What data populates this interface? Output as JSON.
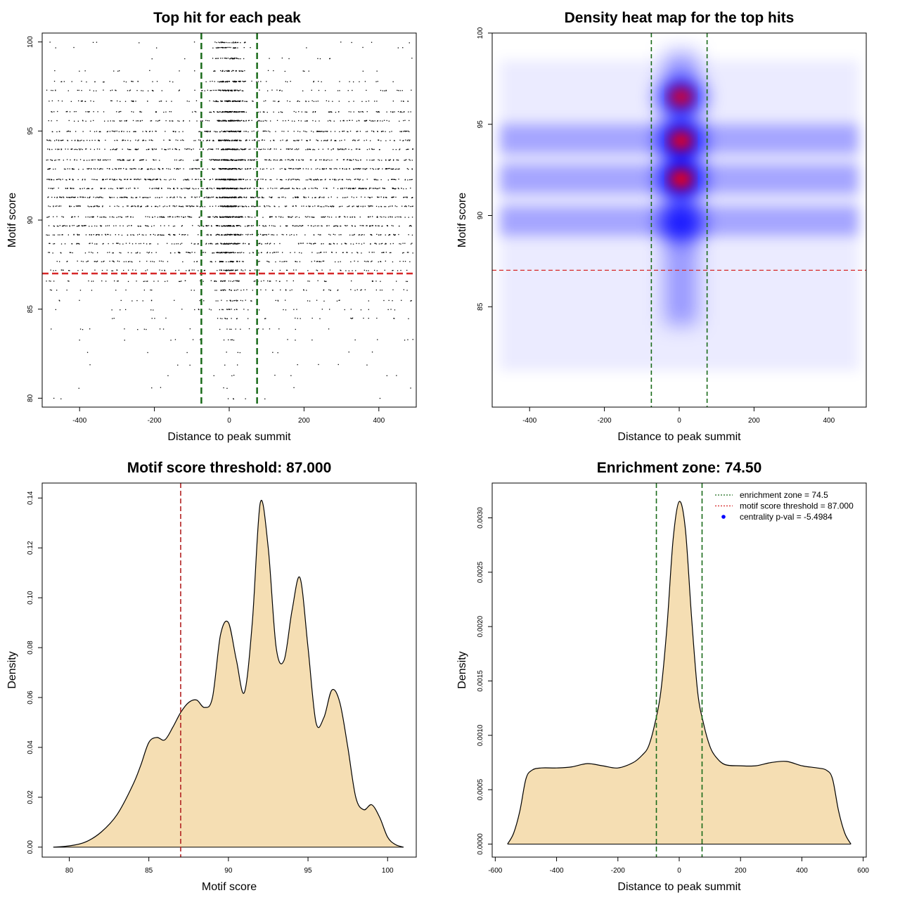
{
  "chart_data": [
    {
      "type": "scatter",
      "title": "Top hit for each peak",
      "xlabel": "Distance to peak summit",
      "ylabel": "Motif score",
      "xlim": [
        -500,
        500
      ],
      "ylim": [
        79.5,
        100.5
      ],
      "xticks": [
        "-400",
        "-200",
        "0",
        "200",
        "400"
      ],
      "yticks": [
        "80",
        "85",
        "90",
        "95",
        "100"
      ],
      "score_levels": [
        80.0,
        80.6,
        81.3,
        81.9,
        82.6,
        83.3,
        83.9,
        84.5,
        85.0,
        85.5,
        86.1,
        86.6,
        87.2,
        87.7,
        88.2,
        88.7,
        89.2,
        89.7,
        90.2,
        90.8,
        91.3,
        91.8,
        92.3,
        92.9,
        93.4,
        94.0,
        94.5,
        95.0,
        95.6,
        96.1,
        96.7,
        97.3,
        97.8,
        98.4,
        99.1,
        99.7,
        100.0
      ],
      "central_zone": [
        -74.5,
        74.5
      ],
      "threshold": 87.0,
      "line_colors": {
        "zone": "#1a6b1a",
        "threshold": "#d62728"
      }
    },
    {
      "type": "heatmap",
      "title": "Density heat map for the top hits",
      "xlabel": "Distance to peak summit",
      "ylabel": "Motif score",
      "xlim": [
        -500,
        500
      ],
      "ylim": [
        79.5,
        100
      ],
      "xticks": [
        "-400",
        "-200",
        "0",
        "200",
        "400"
      ],
      "yticks": [
        "85",
        "90",
        "95",
        "100"
      ],
      "hotspots": [
        {
          "x": 5,
          "y": 96.5,
          "intensity": 0.85
        },
        {
          "x": 5,
          "y": 94.1,
          "intensity": 0.95
        },
        {
          "x": 5,
          "y": 92.0,
          "intensity": 1.0
        },
        {
          "x": 5,
          "y": 89.6,
          "intensity": 0.55
        }
      ],
      "bands": [
        94.2,
        92.0,
        89.7
      ],
      "central_zone": [
        -74.5,
        74.5
      ],
      "threshold": 87.0,
      "colors": {
        "low": "#ffffff",
        "mid": "#0000ff",
        "high": "#ff0000"
      }
    },
    {
      "type": "area",
      "title": "Motif score threshold: 87.000",
      "xlabel": "Motif score",
      "ylabel": "Density",
      "xlim": [
        78.3,
        101.8
      ],
      "ylim": [
        -0.004,
        0.146
      ],
      "xticks": [
        "80",
        "85",
        "90",
        "95",
        "100"
      ],
      "yticks": [
        "0.00",
        "0.02",
        "0.04",
        "0.06",
        "0.08",
        "0.10",
        "0.12",
        "0.14"
      ],
      "x": [
        79.0,
        80.0,
        81.0,
        82.0,
        83.0,
        84.0,
        84.5,
        85.0,
        85.5,
        86.0,
        86.5,
        87.0,
        87.5,
        88.0,
        88.5,
        89.0,
        89.5,
        90.0,
        90.5,
        91.0,
        91.5,
        92.0,
        92.5,
        93.0,
        93.5,
        94.0,
        94.5,
        95.0,
        95.5,
        96.0,
        96.5,
        97.0,
        97.5,
        98.0,
        98.5,
        99.0,
        99.5,
        100.0,
        100.5,
        101.0
      ],
      "y": [
        0.0,
        0.0005,
        0.002,
        0.006,
        0.013,
        0.025,
        0.033,
        0.042,
        0.044,
        0.043,
        0.048,
        0.054,
        0.058,
        0.059,
        0.056,
        0.06,
        0.085,
        0.09,
        0.075,
        0.062,
        0.09,
        0.138,
        0.12,
        0.08,
        0.075,
        0.095,
        0.108,
        0.08,
        0.05,
        0.052,
        0.063,
        0.058,
        0.04,
        0.02,
        0.015,
        0.017,
        0.012,
        0.004,
        0.001,
        0.0
      ],
      "threshold": 87.0,
      "colors": {
        "fill": "#f5deb3",
        "line": "#000000",
        "threshold": "#b22222"
      }
    },
    {
      "type": "area",
      "title": "Enrichment zone: 74.50",
      "xlabel": "Distance to peak summit",
      "ylabel": "Density",
      "xlim": [
        -610,
        610
      ],
      "ylim": [
        -0.00012,
        0.00332
      ],
      "xticks": [
        "-600",
        "-400",
        "-200",
        "0",
        "200",
        "400",
        "600"
      ],
      "yticks": [
        "0.0000",
        "0.0005",
        "0.0010",
        "0.0015",
        "0.0020",
        "0.0025",
        "0.0030"
      ],
      "x": [
        -560,
        -540,
        -520,
        -500,
        -480,
        -450,
        -400,
        -350,
        -300,
        -250,
        -200,
        -150,
        -120,
        -100,
        -80,
        -60,
        -40,
        -20,
        0,
        20,
        40,
        60,
        80,
        100,
        120,
        150,
        200,
        250,
        300,
        350,
        400,
        450,
        480,
        500,
        520,
        540,
        560
      ],
      "y": [
        0.0,
        0.0001,
        0.0003,
        0.0006,
        0.00068,
        0.0007,
        0.0007,
        0.00071,
        0.00074,
        0.00072,
        0.0007,
        0.00075,
        0.00082,
        0.0009,
        0.0011,
        0.0014,
        0.002,
        0.0028,
        0.00315,
        0.0029,
        0.0021,
        0.0014,
        0.0011,
        0.0009,
        0.0008,
        0.00073,
        0.00072,
        0.00072,
        0.00075,
        0.00076,
        0.00072,
        0.0007,
        0.00068,
        0.0006,
        0.0003,
        0.0001,
        0.0
      ],
      "central_zone": [
        -74.5,
        74.5
      ],
      "colors": {
        "fill": "#f5deb3",
        "line": "#000000",
        "zone": "#1a6b1a"
      },
      "legend": {
        "position": "top-right",
        "entries": [
          {
            "label": "enrichment zone = 74.5",
            "color": "#1a6b1a",
            "style": "dotted"
          },
          {
            "label": "motif score threshold = 87.000",
            "color": "#d62728",
            "style": "dotted"
          },
          {
            "label": "centrality p-val = -5.4984",
            "color": "#0000ff",
            "style": "point"
          }
        ]
      }
    }
  ]
}
